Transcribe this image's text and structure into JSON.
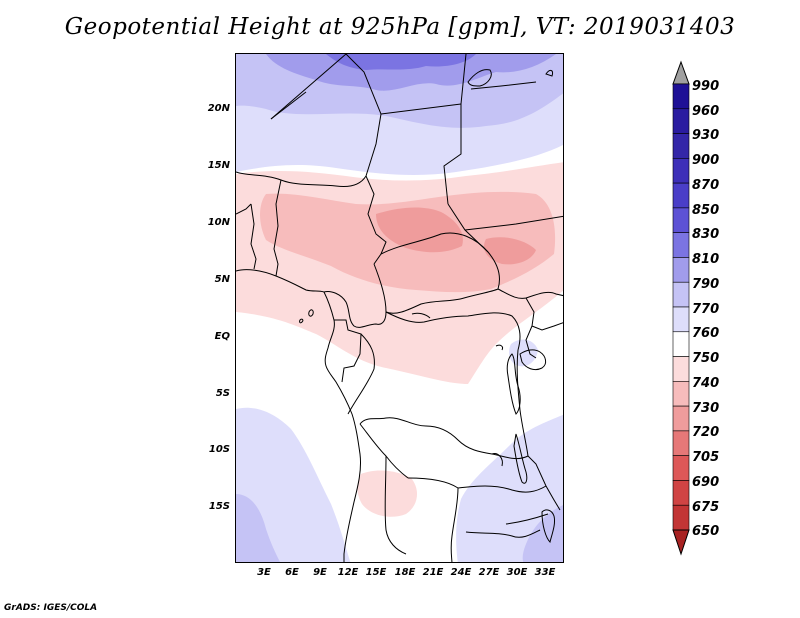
{
  "title": "Geopotential Height at 925hPa [gpm], VT: 2019031403",
  "map": {
    "region": "Central Africa",
    "variable": "Geopotential Height",
    "level": "925hPa",
    "units": "gpm",
    "valid_time": "2019031403",
    "lat_labels": [
      "20N",
      "15N",
      "10N",
      "5N",
      "EQ",
      "5S",
      "10S",
      "15S"
    ],
    "lon_labels": [
      "3E",
      "6E",
      "9E",
      "12E",
      "15E",
      "18E",
      "21E",
      "24E",
      "27E",
      "30E",
      "33E"
    ]
  },
  "colorbar": {
    "labels": [
      "990",
      "960",
      "930",
      "900",
      "870",
      "850",
      "830",
      "810",
      "790",
      "770",
      "760",
      "750",
      "740",
      "730",
      "720",
      "705",
      "690",
      "675",
      "650"
    ],
    "colors": [
      "#1e1096",
      "#2a1ca0",
      "#3326a8",
      "#3d2fb8",
      "#4a3ec8",
      "#5d52d5",
      "#7b74e2",
      "#a19cec",
      "#c5c3f5",
      "#dedefb",
      "#ffffff",
      "#fcdcdc",
      "#f7bcbc",
      "#ef9c9c",
      "#e67878",
      "#dd5858",
      "#d04444",
      "#c23535",
      "#a82222"
    ]
  },
  "footer": "GrADS: IGES/COLA"
}
